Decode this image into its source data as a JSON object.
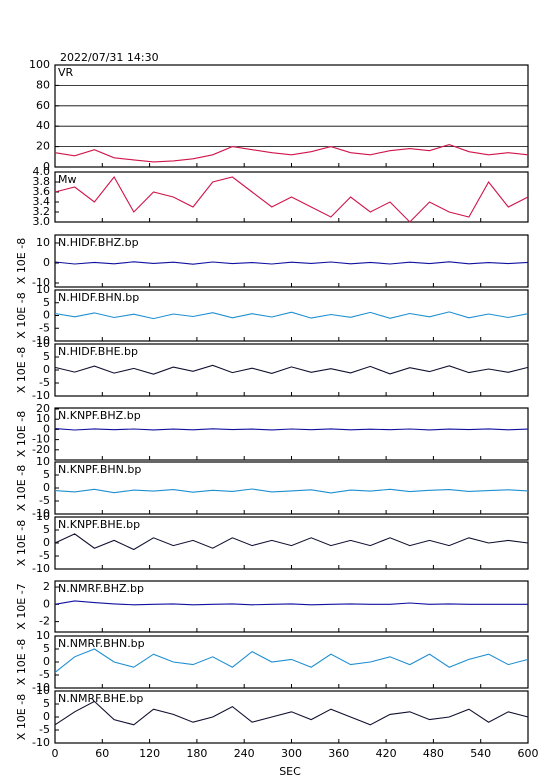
{
  "title": "2022/07/31 14:30",
  "xlabel": "SEC",
  "xlim": [
    0,
    600
  ],
  "xticks": [
    0,
    60,
    120,
    180,
    240,
    300,
    360,
    420,
    480,
    540,
    600
  ],
  "chart_data": [
    {
      "type": "line",
      "label": "VR",
      "ylim": [
        0,
        100
      ],
      "yticks": [
        0,
        20,
        40,
        60,
        80,
        100
      ],
      "grid": true,
      "color": "#d0144a",
      "x": [
        0,
        25,
        50,
        75,
        100,
        125,
        150,
        175,
        200,
        225,
        250,
        275,
        300,
        325,
        350,
        375,
        400,
        425,
        450,
        475,
        500,
        525,
        550,
        575,
        600
      ],
      "values": [
        14,
        11,
        17,
        9,
        7,
        5,
        6,
        8,
        12,
        20,
        17,
        14,
        12,
        15,
        20,
        14,
        12,
        16,
        18,
        16,
        22,
        15,
        12,
        14,
        12
      ]
    },
    {
      "type": "line",
      "label": "Mw",
      "ylim": [
        3,
        4
      ],
      "yticks": [
        {
          "value": 3,
          "label": "3.0"
        },
        {
          "value": 3.2,
          "label": "3.2"
        },
        {
          "value": 3.4,
          "label": "3.4"
        },
        {
          "value": 3.6,
          "label": "3.6"
        },
        {
          "value": 3.8,
          "label": "3.8"
        },
        {
          "value": 4,
          "label": "4.0"
        }
      ],
      "color": "#d0144a",
      "x": [
        0,
        25,
        50,
        75,
        100,
        125,
        150,
        175,
        200,
        225,
        250,
        275,
        300,
        325,
        350,
        375,
        400,
        425,
        450,
        475,
        500,
        525,
        550,
        575,
        600
      ],
      "values": [
        3.6,
        3.7,
        3.4,
        3.9,
        3.2,
        3.6,
        3.5,
        3.3,
        3.8,
        3.9,
        3.6,
        3.3,
        3.5,
        3.3,
        3.1,
        3.5,
        3.2,
        3.4,
        3.0,
        3.4,
        3.2,
        3.1,
        3.8,
        3.3,
        3.5
      ]
    },
    {
      "type": "line",
      "label": "N.HIDF.BHZ.bp",
      "ylabel": "X 10E -8",
      "ylim": [
        -12,
        14
      ],
      "yticks": [
        -10,
        0,
        10
      ],
      "color": "#1010a0",
      "x": [
        0,
        25,
        50,
        75,
        100,
        125,
        150,
        175,
        200,
        225,
        250,
        275,
        300,
        325,
        350,
        375,
        400,
        425,
        450,
        475,
        500,
        525,
        550,
        575,
        600
      ],
      "values": [
        0.5,
        -0.5,
        0.3,
        -0.4,
        0.6,
        -0.2,
        0.4,
        -0.6,
        0.5,
        -0.3,
        0.2,
        -0.5,
        0.4,
        -0.2,
        0.5,
        -0.4,
        0.3,
        -0.5,
        0.4,
        -0.3,
        0.6,
        -0.4,
        0.2,
        -0.3,
        0.3
      ]
    },
    {
      "type": "line",
      "label": "N.HIDF.BHN.bp",
      "ylabel": "X 10E -8",
      "ylim": [
        -10,
        10
      ],
      "yticks": [
        -10,
        -5,
        0,
        5,
        10
      ],
      "color": "#1e8fd0",
      "x": [
        0,
        25,
        50,
        75,
        100,
        125,
        150,
        175,
        200,
        225,
        250,
        275,
        300,
        325,
        350,
        375,
        400,
        425,
        450,
        475,
        500,
        525,
        550,
        575,
        600
      ],
      "values": [
        0.8,
        -0.5,
        1.0,
        -0.8,
        0.5,
        -1.2,
        0.6,
        -0.4,
        1.1,
        -0.9,
        0.7,
        -0.6,
        1.3,
        -1.0,
        0.4,
        -0.7,
        1.2,
        -1.1,
        0.8,
        -0.5,
        1.4,
        -0.9,
        0.6,
        -0.8,
        0.7
      ]
    },
    {
      "type": "line",
      "label": "N.HIDF.BHE.bp",
      "ylabel": "X 10E -8",
      "ylim": [
        -10,
        10
      ],
      "yticks": [
        -10,
        -5,
        0,
        5,
        10
      ],
      "color": "#101030",
      "x": [
        0,
        25,
        50,
        75,
        100,
        125,
        150,
        175,
        200,
        225,
        250,
        275,
        300,
        325,
        350,
        375,
        400,
        425,
        450,
        475,
        500,
        525,
        550,
        575,
        600
      ],
      "values": [
        1.0,
        -0.8,
        1.5,
        -1.2,
        0.6,
        -1.6,
        1.1,
        -0.5,
        1.8,
        -1.0,
        0.7,
        -1.3,
        1.2,
        -0.9,
        0.5,
        -1.1,
        1.4,
        -1.5,
        0.9,
        -0.6,
        1.6,
        -1.0,
        0.4,
        -0.9,
        1.0
      ]
    },
    {
      "type": "line",
      "label": "N.KNPF.BHZ.bp",
      "ylabel": "X 10E -8",
      "ylim": [
        -30,
        21
      ],
      "yticks": [
        -20,
        -10,
        0,
        10,
        20
      ],
      "color": "#1010a0",
      "x": [
        0,
        25,
        50,
        75,
        100,
        125,
        150,
        175,
        200,
        225,
        250,
        275,
        300,
        325,
        350,
        375,
        400,
        425,
        450,
        475,
        500,
        525,
        550,
        575,
        600
      ],
      "values": [
        0.8,
        -0.6,
        0.5,
        -0.3,
        0.4,
        -0.5,
        0.3,
        -0.4,
        0.6,
        -0.2,
        0.3,
        -0.5,
        0.4,
        -0.3,
        0.5,
        -0.4,
        0.2,
        -0.3,
        0.4,
        -0.5,
        0.3,
        -0.2,
        0.5,
        -0.4,
        0.3
      ]
    },
    {
      "type": "line",
      "label": "N.KNPF.BHN.bp",
      "ylabel": "X 10E -8",
      "ylim": [
        -10,
        10
      ],
      "yticks": [
        -10,
        -5,
        0,
        5,
        10
      ],
      "color": "#1e8fd0",
      "x": [
        0,
        25,
        50,
        75,
        100,
        125,
        150,
        175,
        200,
        225,
        250,
        275,
        300,
        325,
        350,
        375,
        400,
        425,
        450,
        475,
        500,
        525,
        550,
        575,
        600
      ],
      "values": [
        -1,
        -1.5,
        -0.5,
        -1.8,
        -0.8,
        -1.2,
        -0.6,
        -1.6,
        -0.9,
        -1.3,
        -0.4,
        -1.5,
        -1.1,
        -0.7,
        -1.9,
        -0.8,
        -1.2,
        -0.5,
        -1.4,
        -0.9,
        -0.6,
        -1.3,
        -1.0,
        -0.7,
        -1.1
      ]
    },
    {
      "type": "line",
      "label": "N.KNPF.BHE.bp",
      "ylabel": "X 10E -8",
      "ylim": [
        -10,
        10
      ],
      "yticks": [
        -10,
        -5,
        0,
        5,
        10
      ],
      "color": "#101030",
      "x": [
        0,
        25,
        50,
        75,
        100,
        125,
        150,
        175,
        200,
        225,
        250,
        275,
        300,
        325,
        350,
        375,
        400,
        425,
        450,
        475,
        500,
        525,
        550,
        575,
        600
      ],
      "values": [
        0,
        3.5,
        -2,
        1,
        -2.5,
        2,
        -1,
        1,
        -2,
        2,
        -1,
        1,
        -1,
        2,
        -1,
        1,
        -1,
        2,
        -1,
        1,
        -1,
        2,
        0,
        1,
        0
      ]
    },
    {
      "type": "line",
      "label": "N.NMRF.BHZ.bp",
      "ylabel": "X 10E -7",
      "ylim": [
        -3.2,
        2.7
      ],
      "yticks": [
        -2,
        0,
        2
      ],
      "color": "#1010a0",
      "x": [
        0,
        25,
        50,
        75,
        100,
        125,
        150,
        175,
        200,
        225,
        250,
        275,
        300,
        325,
        350,
        375,
        400,
        425,
        450,
        475,
        500,
        525,
        550,
        575,
        600
      ],
      "values": [
        0,
        0.4,
        0.2,
        0.05,
        -0.05,
        0,
        0.05,
        -0.05,
        0,
        0.05,
        -0.05,
        0,
        0.05,
        -0.05,
        0,
        0.05,
        0,
        0,
        0.15,
        0,
        0.05,
        0,
        0,
        0,
        0
      ]
    },
    {
      "type": "line",
      "label": "N.NMRF.BHN.bp",
      "ylabel": "X 10E -8",
      "ylim": [
        -10,
        10
      ],
      "yticks": [
        -10,
        -5,
        0,
        5,
        10
      ],
      "color": "#1e8fd0",
      "x": [
        0,
        25,
        50,
        75,
        100,
        125,
        150,
        175,
        200,
        225,
        250,
        275,
        300,
        325,
        350,
        375,
        400,
        425,
        450,
        475,
        500,
        525,
        550,
        575,
        600
      ],
      "values": [
        -4,
        2,
        5,
        0,
        -2,
        3,
        0,
        -1,
        2,
        -2,
        4,
        0,
        1,
        -2,
        3,
        -1,
        0,
        2,
        -1,
        3,
        -2,
        1,
        3,
        -1,
        1
      ]
    },
    {
      "type": "line",
      "label": "N.NMRF.BHE.bp",
      "ylabel": "X 10E -8",
      "ylim": [
        -10,
        10
      ],
      "yticks": [
        -10,
        -5,
        0,
        5,
        10
      ],
      "color": "#101030",
      "x": [
        0,
        25,
        50,
        75,
        100,
        125,
        150,
        175,
        200,
        225,
        250,
        275,
        300,
        325,
        350,
        375,
        400,
        425,
        450,
        475,
        500,
        525,
        550,
        575,
        600
      ],
      "values": [
        -3,
        2,
        6,
        -1,
        -3,
        3,
        1,
        -2,
        0,
        4,
        -2,
        0,
        2,
        -1,
        3,
        0,
        -3,
        1,
        2,
        -1,
        0,
        3,
        -2,
        2,
        0
      ]
    }
  ]
}
